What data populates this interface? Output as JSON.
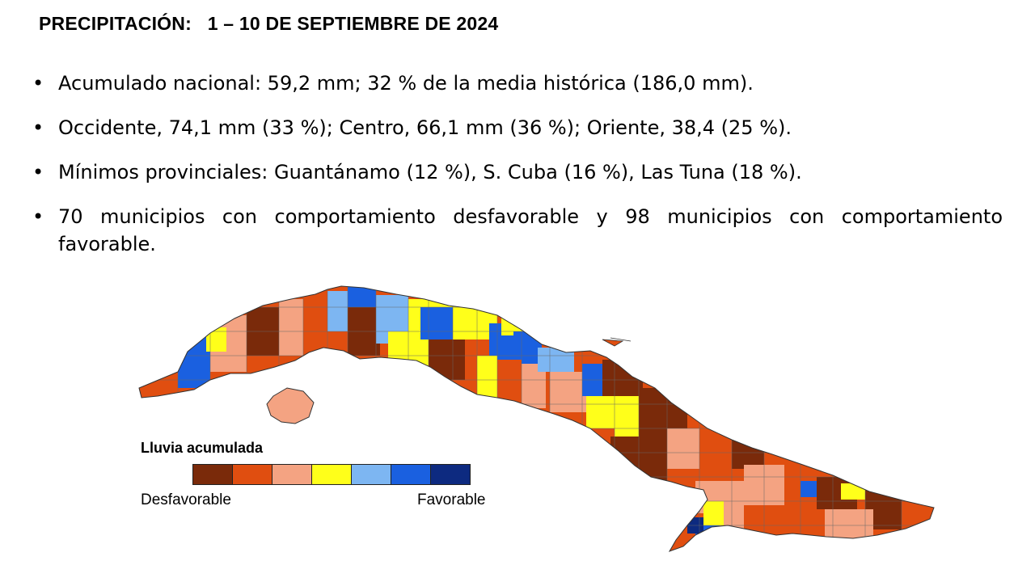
{
  "title": "PRECIPITACIÓN:   1 – 10 DE SEPTIEMBRE DE 2024",
  "bullets": [
    "Acumulado nacional: 59,2 mm; 32 % de la media histórica (186,0 mm).",
    "Occidente, 74,1 mm (33 %); Centro, 66,1 mm (36 %); Oriente, 38,4 (25 %).",
    "Mínimos provinciales: Guantánamo (12 %), S. Cuba (16 %), Las Tuna (18 %).",
    "70 municipios con comportamiento desfavorable y 98 municipios con comportamiento favorable."
  ],
  "bullet_symbol": "•",
  "legend": {
    "title": "Lluvia acumulada",
    "low_label": "Desfavorable",
    "high_label": "Favorable",
    "colors": [
      "#7a2a0a",
      "#e04e10",
      "#f4a382",
      "#ffff1a",
      "#7db6f2",
      "#1a60e0",
      "#0d2a80"
    ]
  }
}
